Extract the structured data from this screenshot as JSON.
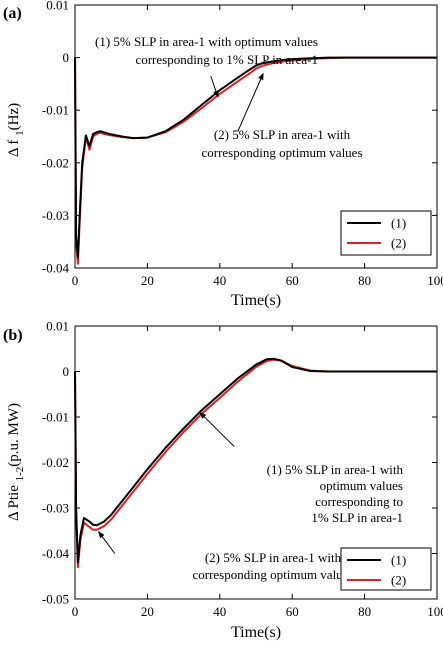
{
  "chart_data": [
    {
      "panel_label": "(a)",
      "type": "line",
      "xlabel": "Time(s)",
      "ylabel_main": "Δ f",
      "ylabel_sub": "1",
      "ylabel_unit": "(Hz)",
      "xlim": [
        0,
        100
      ],
      "ylim": [
        -0.04,
        0.01
      ],
      "xticks": [
        "0",
        "20",
        "40",
        "60",
        "80",
        "100"
      ],
      "xtick_values": [
        0,
        20,
        40,
        60,
        80,
        100
      ],
      "yticks": [
        "-0.04",
        "-0.03",
        "-0.02",
        "-0.01",
        "0",
        "0.01"
      ],
      "ytick_values": [
        -0.04,
        -0.03,
        -0.02,
        -0.01,
        0,
        0.01
      ],
      "legend_position": "bottom-right",
      "series": [
        {
          "name": "(1)",
          "color": "#000000",
          "x": [
            0,
            0.3,
            0.8,
            1.3,
            2,
            3,
            4,
            5,
            6,
            7,
            8,
            10,
            13,
            16,
            20,
            25,
            30,
            35,
            40,
            45,
            48,
            50,
            52,
            55,
            58,
            62,
            66,
            70,
            75,
            80,
            90,
            100
          ],
          "y": [
            0,
            -0.034,
            -0.038,
            -0.03,
            -0.02,
            -0.0148,
            -0.0168,
            -0.0145,
            -0.0142,
            -0.014,
            -0.0142,
            -0.0146,
            -0.015,
            -0.0153,
            -0.0152,
            -0.014,
            -0.0118,
            -0.009,
            -0.0062,
            -0.0038,
            -0.0024,
            -0.0015,
            -0.001,
            -0.0007,
            -0.0004,
            -0.0002,
            -0.0001,
            0,
            0,
            0,
            0,
            0
          ]
        },
        {
          "name": "(2)",
          "color": "#e02020",
          "x": [
            0,
            0.3,
            0.8,
            1.3,
            2,
            3,
            4,
            5,
            6,
            7,
            8,
            10,
            13,
            16,
            20,
            25,
            30,
            35,
            40,
            45,
            48,
            50,
            52,
            55,
            58,
            62,
            66,
            70,
            75,
            80,
            90,
            100
          ],
          "y": [
            0,
            -0.035,
            -0.0392,
            -0.031,
            -0.021,
            -0.0152,
            -0.0175,
            -0.015,
            -0.0145,
            -0.0143,
            -0.0145,
            -0.0148,
            -0.0151,
            -0.0153,
            -0.0152,
            -0.0142,
            -0.0122,
            -0.0096,
            -0.0069,
            -0.0045,
            -0.0031,
            -0.0021,
            -0.0015,
            -0.001,
            -0.0007,
            -0.0004,
            -0.0002,
            -0.0001,
            0,
            0,
            0,
            0
          ]
        }
      ],
      "annotations": [
        {
          "lines": [
            "(1) 5% SLP in area-1 with optimum values",
            "corresponding to 1% SLP in area-1"
          ],
          "arrow_from": [
            37.5,
            -0.0035
          ],
          "arrow_to": [
            39.5,
            -0.0075
          ]
        },
        {
          "lines": [
            "(2) 5% SLP in area-1 with",
            "corresponding optimum values"
          ],
          "arrow_from": [
            45,
            -0.014
          ],
          "arrow_to": [
            52,
            -0.003
          ]
        }
      ]
    },
    {
      "panel_label": "(b)",
      "type": "line",
      "xlabel": "Time(s)",
      "ylabel_main": "Δ Ptie",
      "ylabel_sub": "1-2",
      "ylabel_unit": "(p.u. MW)",
      "xlim": [
        0,
        100
      ],
      "ylim": [
        -0.05,
        0.01
      ],
      "xticks": [
        "0",
        "20",
        "40",
        "60",
        "80",
        "100"
      ],
      "xtick_values": [
        0,
        20,
        40,
        60,
        80,
        100
      ],
      "yticks": [
        "-0.05",
        "-0.04",
        "-0.03",
        "-0.02",
        "-0.01",
        "0",
        "0.01"
      ],
      "ytick_values": [
        -0.05,
        -0.04,
        -0.03,
        -0.02,
        -0.01,
        0,
        0.01
      ],
      "legend_position": "bottom-right",
      "series": [
        {
          "name": "(1)",
          "color": "#000000",
          "x": [
            0,
            0.3,
            0.8,
            1.5,
            2.5,
            4,
            5,
            6,
            8,
            10,
            15,
            20,
            25,
            30,
            35,
            40,
            45,
            50,
            53,
            55,
            57,
            60,
            65,
            70,
            80,
            90,
            100
          ],
          "y": [
            0,
            -0.03,
            -0.042,
            -0.036,
            -0.0322,
            -0.033,
            -0.0337,
            -0.0338,
            -0.033,
            -0.0315,
            -0.0265,
            -0.0215,
            -0.0168,
            -0.0125,
            -0.0085,
            -0.005,
            -0.0015,
            0.0015,
            0.0027,
            0.0028,
            0.0024,
            0.001,
            0.0001,
            0,
            0,
            0,
            0
          ]
        },
        {
          "name": "(2)",
          "color": "#e02020",
          "x": [
            0,
            0.3,
            0.8,
            1.5,
            2.5,
            4,
            5,
            6,
            8,
            10,
            15,
            20,
            25,
            30,
            35,
            40,
            45,
            50,
            53,
            55,
            57,
            60,
            65,
            70,
            80,
            90,
            100
          ],
          "y": [
            0,
            -0.031,
            -0.043,
            -0.037,
            -0.0332,
            -0.0342,
            -0.0348,
            -0.0348,
            -0.034,
            -0.0325,
            -0.0275,
            -0.0225,
            -0.0177,
            -0.0133,
            -0.0093,
            -0.0058,
            -0.0022,
            0.001,
            0.0023,
            0.0026,
            0.0024,
            0.0012,
            0.0002,
            0,
            0,
            0,
            0
          ]
        }
      ],
      "annotations": [
        {
          "lines": [
            "(1) 5% SLP in area-1 with",
            "optimum values",
            "corresponding to",
            "1% SLP in area-1"
          ],
          "arrow_from": [
            44,
            -0.0165
          ],
          "arrow_to": [
            34.5,
            -0.009
          ]
        },
        {
          "lines": [
            "(2) 5% SLP in area-1 with",
            "corresponding optimum values"
          ],
          "arrow_from": [
            11,
            -0.04
          ],
          "arrow_to": [
            6.5,
            -0.0352
          ]
        }
      ]
    }
  ]
}
